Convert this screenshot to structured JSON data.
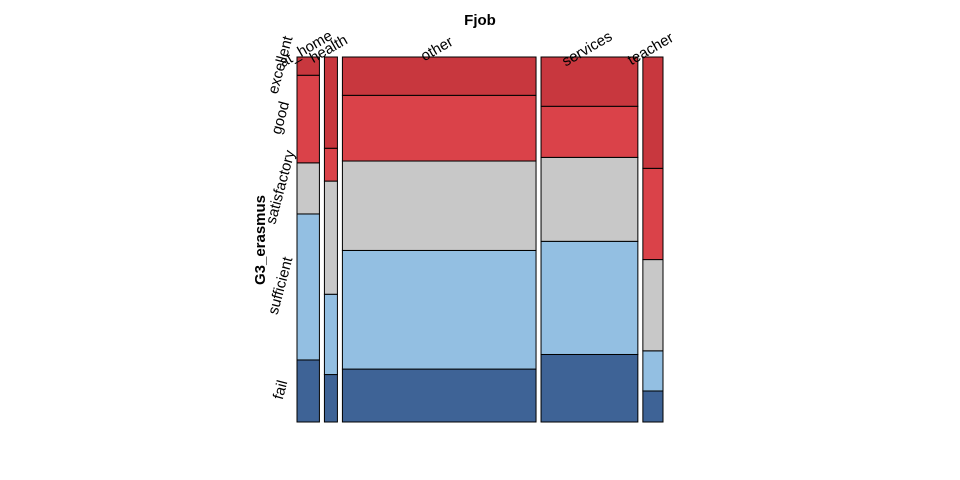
{
  "chart_data": {
    "type": "mosaic",
    "xlabel": "Fjob",
    "ylabel": "G3_erasmus",
    "columns": [
      "at_home",
      "health",
      "other",
      "services",
      "teacher"
    ],
    "column_proportions": [
      0.069,
      0.04,
      0.596,
      0.298,
      0.062
    ],
    "rows": [
      "fail",
      "sufficient",
      "satisfactory",
      "good",
      "excellent"
    ],
    "row_colors": [
      "#3e6396",
      "#93bfe2",
      "#c8c8c8",
      "#da4249",
      "#c8373e"
    ],
    "values": {
      "at_home": [
        0.17,
        0.4,
        0.14,
        0.24,
        0.05
      ],
      "health": [
        0.13,
        0.22,
        0.31,
        0.09,
        0.25
      ],
      "other": [
        0.145,
        0.325,
        0.245,
        0.18,
        0.105
      ],
      "services": [
        0.185,
        0.31,
        0.23,
        0.14,
        0.135
      ],
      "teacher": [
        0.085,
        0.11,
        0.25,
        0.25,
        0.305
      ]
    }
  }
}
